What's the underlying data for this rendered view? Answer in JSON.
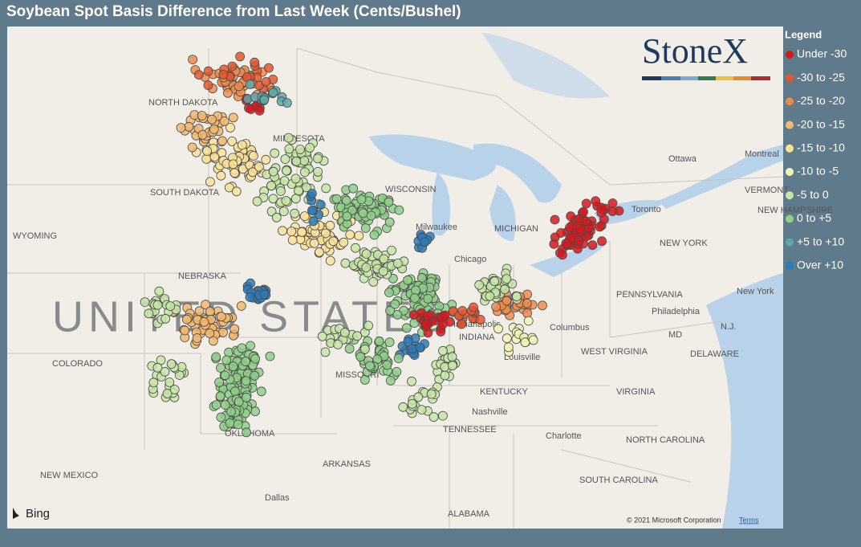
{
  "title": "Soybean Spot Basis Difference from Last Week (Cents/Bushel)",
  "legend": {
    "title": "Legend",
    "items": [
      {
        "label": "Under -30",
        "color": "#d7191c"
      },
      {
        "label": "-30 to -25",
        "color": "#e4572e"
      },
      {
        "label": "-25 to -20",
        "color": "#f08c4b"
      },
      {
        "label": "-20 to -15",
        "color": "#f5b870"
      },
      {
        "label": "-15 to -10",
        "color": "#fbe39a"
      },
      {
        "label": "-10 to -5",
        "color": "#f3f5b5"
      },
      {
        "label": "-5 to 0",
        "color": "#c6e5a6"
      },
      {
        "label": "0 to +5",
        "color": "#8fcf8a"
      },
      {
        "label": "+5 to +10",
        "color": "#5fa8a8"
      },
      {
        "label": "Over +10",
        "color": "#2b7bba"
      }
    ]
  },
  "logo": "StoneX",
  "map_labels": [
    "NORTH DAKOTA",
    "MINNESOTA",
    "SOUTH DAKOTA",
    "WYOMING",
    "NEBRASKA",
    "COLORADO",
    "MISSOURI",
    "KENTUCKY",
    "TENNESSEE",
    "ARKANSAS",
    "OKLAHOMA",
    "NEW MEXICO",
    "ALABAMA",
    "SOUTH CAROLINA",
    "NORTH CAROLINA",
    "VIRGINIA",
    "WEST VIRGINIA",
    "PENNSYLVANIA",
    "NEW YORK",
    "VERMONT",
    "DELAWARE",
    "MD",
    "N.J.",
    "WISCONSIN",
    "MICHIGAN",
    "INDIANA",
    "NEW HAMPSHIRE"
  ],
  "city_labels": [
    "Ottawa",
    "Montreal",
    "Toronto",
    "Milwaukee",
    "Chicago",
    "Columbus",
    "Louisville",
    "Nashville",
    "Charlotte",
    "Dallas",
    "Philadelphia",
    "New York",
    "Indianapolis"
  ],
  "country_label": "UNITED STATES",
  "attribution": {
    "provider": "Bing",
    "copyright": "© 2021 Microsoft Corporation",
    "terms": "Terms"
  }
}
